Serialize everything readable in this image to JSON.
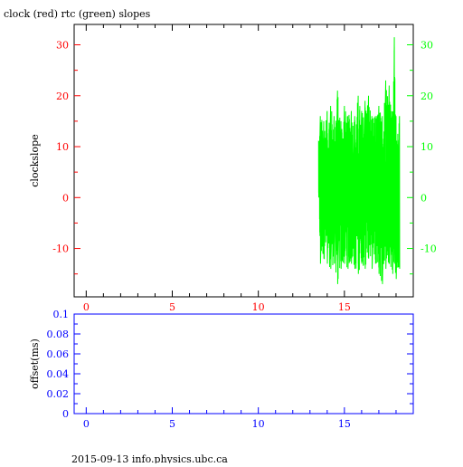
{
  "title": "clock (red) rtc (green) slopes",
  "footer": "2015-09-13 info.physics.ubc.ca",
  "colors": {
    "red": "#ff0000",
    "green": "#00ff00",
    "blue": "#0000ff",
    "axis": "#000000"
  },
  "chart_data": [
    {
      "type": "line",
      "title": "clock (red) rtc (green) slopes",
      "ylabel": "clockslope",
      "xlim": [
        -0.7,
        19.0
      ],
      "ylim": [
        -19.5,
        34.0
      ],
      "x_ticks": [
        0,
        5,
        10,
        15
      ],
      "y_ticks": [
        -10,
        0,
        10,
        20,
        30
      ],
      "left_axis_color": "red",
      "right_axis_color": "green",
      "grid": false,
      "series": [
        {
          "color": "green",
          "x_range": [
            13.5,
            18.2
          ],
          "envelope": {
            "x": [
              13.5,
              13.6,
              13.8,
              14.0,
              14.2,
              14.4,
              14.6,
              14.8,
              15.0,
              15.2,
              15.4,
              15.6,
              15.8,
              16.0,
              16.2,
              16.4,
              16.6,
              16.8,
              17.0,
              17.2,
              17.4,
              17.6,
              17.8,
              17.9,
              18.0,
              18.2
            ],
            "max": [
              11,
              16,
              15,
              17,
              18,
              16,
              21,
              15,
              18,
              16,
              17,
              16,
              20,
              17,
              19,
              20,
              16,
              16,
              18,
              16,
              23,
              22,
              16,
              31.5,
              16,
              16
            ],
            "min": [
              0,
              -13,
              -12,
              -13,
              -14,
              -13,
              -17,
              -14,
              -13,
              -14,
              -13,
              -14,
              -15,
              -13,
              -14,
              -12,
              -14,
              -13,
              -15,
              -17,
              -14,
              -13,
              -15,
              -13,
              -16,
              -14
            ]
          }
        }
      ]
    },
    {
      "type": "line",
      "ylabel": "offset(ms)",
      "xlim": [
        -0.7,
        19.0
      ],
      "ylim": [
        0,
        0.1
      ],
      "x_ticks": [
        0,
        5,
        10,
        15
      ],
      "y_ticks": [
        0,
        0.02,
        0.04,
        0.06,
        0.08,
        0.1
      ],
      "y_tick_labels": [
        "0",
        "0.02",
        "0.04",
        "0.06",
        "0.08",
        "0.1"
      ],
      "axis_color": "blue",
      "grid": false,
      "series": []
    }
  ]
}
